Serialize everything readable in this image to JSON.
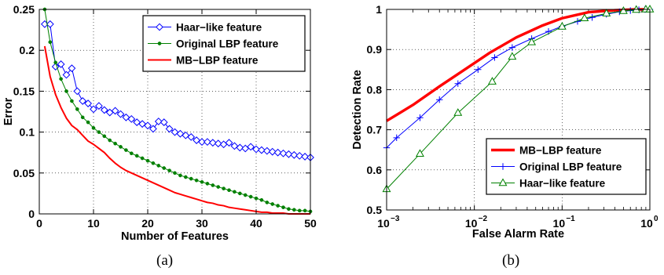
{
  "captions": {
    "a": "(a)",
    "b": "(b)"
  },
  "colors": {
    "blue": "#0000ff",
    "green": "#008000",
    "red": "#ff0000",
    "axis": "#000000",
    "background": "#ffffff"
  },
  "chart_data": [
    {
      "type": "line",
      "xlabel": "Number of Features",
      "ylabel": "Error",
      "xlim": [
        0,
        50
      ],
      "ylim": [
        0,
        0.25
      ],
      "xticks": [
        0,
        10,
        20,
        30,
        40,
        50
      ],
      "xtick_labels": [
        "0",
        "10",
        "20",
        "30",
        "40",
        "50"
      ],
      "yticks": [
        0,
        0.05,
        0.1,
        0.15,
        0.2,
        0.25
      ],
      "ytick_labels": [
        "0",
        "0.05",
        "0.1",
        "0.15",
        "0.2",
        "0.25"
      ],
      "grid": true,
      "legend_position": "top-right",
      "series": [
        {
          "name": "Haar−like feature",
          "color": "#0000ff",
          "marker": "diamond",
          "x": [
            1,
            2,
            3,
            4,
            5,
            6,
            7,
            8,
            9,
            10,
            11,
            12,
            13,
            14,
            15,
            16,
            17,
            18,
            19,
            20,
            21,
            22,
            23,
            24,
            25,
            26,
            27,
            28,
            29,
            30,
            31,
            32,
            33,
            34,
            35,
            36,
            37,
            38,
            39,
            40,
            41,
            42,
            43,
            44,
            45,
            46,
            47,
            48,
            49,
            50
          ],
          "values": [
            0.232,
            0.232,
            0.18,
            0.183,
            0.17,
            0.178,
            0.15,
            0.138,
            0.135,
            0.128,
            0.132,
            0.127,
            0.124,
            0.126,
            0.122,
            0.118,
            0.116,
            0.112,
            0.11,
            0.108,
            0.104,
            0.113,
            0.112,
            0.104,
            0.1,
            0.098,
            0.096,
            0.094,
            0.09,
            0.088,
            0.088,
            0.087,
            0.086,
            0.085,
            0.087,
            0.083,
            0.081,
            0.08,
            0.082,
            0.079,
            0.078,
            0.077,
            0.076,
            0.075,
            0.074,
            0.073,
            0.072,
            0.071,
            0.07,
            0.069
          ]
        },
        {
          "name": "Original LBP feature",
          "color": "#008000",
          "marker": "dot",
          "x": [
            1,
            2,
            3,
            4,
            5,
            6,
            7,
            8,
            9,
            10,
            11,
            12,
            13,
            14,
            15,
            16,
            17,
            18,
            19,
            20,
            21,
            22,
            23,
            24,
            25,
            26,
            27,
            28,
            29,
            30,
            31,
            32,
            33,
            34,
            35,
            36,
            37,
            38,
            39,
            40,
            41,
            42,
            43,
            44,
            45,
            46,
            47,
            48,
            49,
            50
          ],
          "values": [
            0.25,
            0.21,
            0.185,
            0.165,
            0.15,
            0.138,
            0.128,
            0.118,
            0.112,
            0.105,
            0.1,
            0.095,
            0.09,
            0.086,
            0.082,
            0.078,
            0.074,
            0.071,
            0.068,
            0.065,
            0.062,
            0.059,
            0.056,
            0.053,
            0.05,
            0.047,
            0.045,
            0.043,
            0.041,
            0.039,
            0.037,
            0.035,
            0.033,
            0.031,
            0.029,
            0.027,
            0.025,
            0.023,
            0.021,
            0.019,
            0.017,
            0.014,
            0.012,
            0.01,
            0.008,
            0.006,
            0.005,
            0.004,
            0.004,
            0.003
          ]
        },
        {
          "name": "MB−LBP feature",
          "color": "#ff0000",
          "marker": "none",
          "x": [
            1,
            2,
            3,
            4,
            5,
            6,
            7,
            8,
            9,
            10,
            11,
            12,
            13,
            14,
            15,
            16,
            17,
            18,
            19,
            20,
            21,
            22,
            23,
            24,
            25,
            26,
            27,
            28,
            29,
            30,
            31,
            32,
            33,
            34,
            35,
            36,
            37,
            38,
            39,
            40,
            41,
            42,
            43,
            44,
            45,
            46,
            47,
            48,
            49,
            50
          ],
          "values": [
            0.205,
            0.168,
            0.146,
            0.13,
            0.117,
            0.108,
            0.103,
            0.096,
            0.089,
            0.085,
            0.08,
            0.075,
            0.068,
            0.062,
            0.057,
            0.053,
            0.05,
            0.047,
            0.044,
            0.041,
            0.038,
            0.035,
            0.032,
            0.029,
            0.026,
            0.024,
            0.022,
            0.02,
            0.018,
            0.016,
            0.014,
            0.013,
            0.011,
            0.01,
            0.008,
            0.007,
            0.006,
            0.005,
            0.004,
            0.003,
            0.002,
            0.002,
            0.001,
            0.001,
            0.001,
            0.0,
            0.0,
            0.0,
            0.0,
            0.0
          ]
        }
      ]
    },
    {
      "type": "line",
      "xlabel": "False Alarm Rate",
      "ylabel": "Detection Rate",
      "xscale": "log",
      "xlim": [
        0.001,
        1
      ],
      "ylim": [
        0.5,
        1
      ],
      "xticks": [
        0.001,
        0.01,
        0.1,
        1
      ],
      "xtick_labels": [
        {
          "base": "10",
          "exp": "−3"
        },
        {
          "base": "10",
          "exp": "−2"
        },
        {
          "base": "10",
          "exp": "−1"
        },
        {
          "base": "10",
          "exp": "0"
        }
      ],
      "yticks": [
        0.5,
        0.6,
        0.7,
        0.8,
        0.9,
        1
      ],
      "ytick_labels": [
        "0.5",
        "0.6",
        "0.7",
        "0.8",
        "0.9",
        "1"
      ],
      "grid": true,
      "legend_position": "bottom-right",
      "series": [
        {
          "name": "MB−LBP feature",
          "color": "#ff0000",
          "marker": "none",
          "x": [
            0.001,
            0.002,
            0.004,
            0.008,
            0.015,
            0.03,
            0.06,
            0.1,
            0.2,
            0.4,
            0.7,
            1
          ],
          "values": [
            0.722,
            0.762,
            0.808,
            0.852,
            0.892,
            0.93,
            0.96,
            0.978,
            0.993,
            0.998,
            1.0,
            1.0
          ]
        },
        {
          "name": "Original LBP feature",
          "color": "#0000ff",
          "marker": "plus",
          "x": [
            0.001,
            0.0013,
            0.0024,
            0.004,
            0.0065,
            0.011,
            0.017,
            0.027,
            0.045,
            0.07,
            0.1,
            0.15,
            0.22,
            0.32,
            0.45,
            0.6,
            0.75,
            0.88,
            1
          ],
          "values": [
            0.655,
            0.68,
            0.73,
            0.775,
            0.815,
            0.85,
            0.88,
            0.905,
            0.927,
            0.945,
            0.958,
            0.97,
            0.98,
            0.988,
            0.994,
            0.997,
            0.999,
            1.0,
            1.0
          ]
        },
        {
          "name": "Haar−like feature",
          "color": "#008000",
          "marker": "triangle",
          "x": [
            0.001,
            0.0024,
            0.0065,
            0.016,
            0.027,
            0.045,
            0.1,
            0.18,
            0.32,
            0.5,
            0.7,
            0.9,
            1
          ],
          "values": [
            0.552,
            0.64,
            0.742,
            0.82,
            0.882,
            0.918,
            0.957,
            0.978,
            0.99,
            0.996,
            0.999,
            1.0,
            1.0
          ]
        }
      ]
    }
  ]
}
